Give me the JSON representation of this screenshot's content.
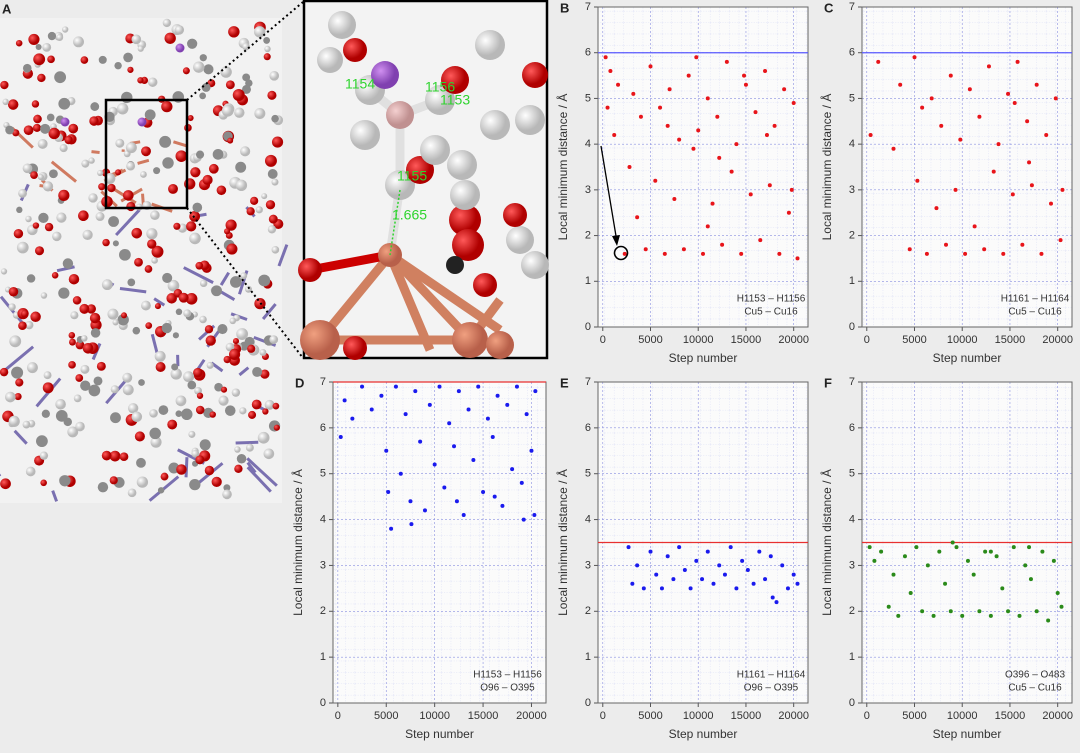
{
  "panel_a": {
    "label": "A"
  },
  "inset": {
    "labels": [
      "1154",
      "1156",
      "1153",
      "1155",
      "1.665"
    ]
  },
  "chart_data": [
    {
      "type": "scatter",
      "panel_label": "B",
      "xlabel": "Step number",
      "ylabel": "Local minimum distance / Å",
      "annotations": [
        "H1153 – H1156",
        "Cu5 – Cu16"
      ],
      "color": "#e8141a",
      "reference_line": {
        "value": 6,
        "color": "#5a5aff"
      },
      "xlim": [
        -500,
        21500
      ],
      "ylim": [
        0,
        7
      ],
      "xticks": [
        0,
        5000,
        10000,
        15000,
        20000
      ],
      "yticks": [
        0,
        1,
        2,
        3,
        4,
        5,
        6,
        7
      ],
      "grid": true,
      "x": [
        300,
        500,
        800,
        1200,
        1600,
        2300,
        2800,
        3200,
        3600,
        4000,
        4500,
        5000,
        5500,
        6000,
        6500,
        7000,
        7500,
        8000,
        8500,
        9000,
        9500,
        10000,
        10500,
        11000,
        11500,
        12000,
        12500,
        13000,
        13500,
        14000,
        14500,
        15000,
        15500,
        16000,
        16500,
        17000,
        17500,
        18000,
        18500,
        19000,
        19500,
        20000,
        20400,
        9800,
        12200,
        14800,
        17200,
        19800,
        6800,
        11000
      ],
      "values": [
        5.9,
        4.8,
        5.6,
        4.2,
        5.3,
        1.6,
        3.5,
        5.1,
        2.4,
        4.6,
        1.7,
        5.7,
        3.2,
        4.8,
        1.6,
        5.2,
        2.8,
        4.1,
        1.7,
        5.5,
        3.9,
        4.3,
        1.6,
        5.0,
        2.7,
        4.6,
        1.8,
        5.8,
        3.4,
        4.0,
        1.6,
        5.3,
        2.9,
        4.7,
        1.9,
        5.6,
        3.1,
        4.4,
        1.6,
        5.2,
        2.5,
        4.9,
        1.5,
        5.9,
        3.7,
        5.5,
        4.2,
        3.0,
        4.4,
        2.2
      ]
    },
    {
      "type": "scatter",
      "panel_label": "C",
      "xlabel": "Step number",
      "ylabel": "Local minimum distance / Å",
      "annotations": [
        "H1161 – H1164",
        "Cu5 – Cu16"
      ],
      "color": "#e8141a",
      "reference_line": {
        "value": 6,
        "color": "#5a5aff"
      },
      "xlim": [
        -500,
        21500
      ],
      "ylim": [
        0,
        7
      ],
      "xticks": [
        0,
        5000,
        10000,
        15000,
        20000
      ],
      "yticks": [
        0,
        1,
        2,
        3,
        4,
        5,
        6,
        7
      ],
      "grid": true,
      "x": [
        400,
        1200,
        2800,
        3500,
        4500,
        5000,
        5300,
        5800,
        6300,
        6800,
        7300,
        7800,
        8300,
        8800,
        9300,
        9800,
        10300,
        10800,
        11300,
        11800,
        12300,
        12800,
        13300,
        13800,
        14300,
        14800,
        15300,
        15800,
        16300,
        16800,
        17300,
        17800,
        18300,
        18800,
        19300,
        19800,
        20300,
        20500,
        15500,
        17000
      ],
      "values": [
        4.2,
        5.8,
        3.9,
        5.3,
        1.7,
        5.9,
        3.2,
        4.8,
        1.6,
        5.0,
        2.6,
        4.4,
        1.8,
        5.5,
        3.0,
        4.1,
        1.6,
        5.2,
        2.2,
        4.6,
        1.7,
        5.7,
        3.4,
        4.0,
        1.6,
        5.1,
        2.9,
        5.8,
        1.8,
        4.5,
        3.1,
        5.3,
        1.6,
        4.2,
        2.7,
        5.0,
        1.9,
        3.0,
        4.9,
        3.6
      ]
    },
    {
      "type": "scatter",
      "panel_label": "D",
      "xlabel": "Step number",
      "ylabel": "Local minimum distance / Å",
      "annotations": [
        "H1153 – H1156",
        "O96 – O395"
      ],
      "color": "#1a1aee",
      "reference_line": {
        "value": 7,
        "color": "#e83030"
      },
      "xlim": [
        -500,
        21500
      ],
      "ylim": [
        0,
        7
      ],
      "xticks": [
        0,
        5000,
        10000,
        15000,
        20000
      ],
      "yticks": [
        0,
        1,
        2,
        3,
        4,
        5,
        6,
        7
      ],
      "grid": true,
      "x": [
        300,
        700,
        1500,
        2500,
        3500,
        4500,
        5000,
        5500,
        6000,
        6500,
        7000,
        7500,
        8000,
        8500,
        9000,
        9500,
        10000,
        10500,
        11000,
        11500,
        12000,
        12500,
        13000,
        13500,
        14000,
        14500,
        15000,
        15500,
        16000,
        16500,
        17000,
        17500,
        18000,
        18500,
        19000,
        19500,
        20000,
        20400,
        5200,
        7600,
        12300,
        16200,
        19200,
        20300
      ],
      "values": [
        5.8,
        6.6,
        6.2,
        6.9,
        6.4,
        6.7,
        5.5,
        3.8,
        6.9,
        5.0,
        6.3,
        4.4,
        6.8,
        5.7,
        4.2,
        6.5,
        5.2,
        6.9,
        4.7,
        6.1,
        5.6,
        6.8,
        4.1,
        6.4,
        5.3,
        6.9,
        4.6,
        6.2,
        5.8,
        6.7,
        4.3,
        6.5,
        5.1,
        6.9,
        4.8,
        6.3,
        5.5,
        6.8,
        4.6,
        3.9,
        4.4,
        4.5,
        4.0,
        4.1
      ]
    },
    {
      "type": "scatter",
      "panel_label": "E",
      "xlabel": "Step number",
      "ylabel": "Local minimum distance / Å",
      "annotations": [
        "H1161 – H1164",
        "O96 – O395"
      ],
      "color": "#1a1aee",
      "reference_line": {
        "value": 3.5,
        "color": "#e83030"
      },
      "xlim": [
        -500,
        21500
      ],
      "ylim": [
        0,
        7
      ],
      "xticks": [
        0,
        5000,
        10000,
        15000,
        20000
      ],
      "yticks": [
        0,
        1,
        2,
        3,
        4,
        5,
        6,
        7
      ],
      "grid": true,
      "x": [
        2700,
        3100,
        3600,
        4300,
        5000,
        5600,
        6200,
        6800,
        7400,
        8000,
        8600,
        9200,
        9800,
        10400,
        11000,
        11600,
        12200,
        12800,
        13400,
        14000,
        14600,
        15200,
        15800,
        16400,
        17000,
        17600,
        18200,
        18800,
        19400,
        20000,
        20400,
        17800
      ],
      "values": [
        3.4,
        2.6,
        3.0,
        2.5,
        3.3,
        2.8,
        2.5,
        3.2,
        2.7,
        3.4,
        2.9,
        2.5,
        3.1,
        2.7,
        3.3,
        2.6,
        3.0,
        2.8,
        3.4,
        2.5,
        3.1,
        2.9,
        2.6,
        3.3,
        2.7,
        3.2,
        2.2,
        3.0,
        2.5,
        2.8,
        2.6,
        2.3
      ]
    },
    {
      "type": "scatter",
      "panel_label": "F",
      "xlabel": "Step number",
      "ylabel": "Local minimum distance / Å",
      "annotations": [
        "O396 – O483",
        "Cu5 – Cu16"
      ],
      "color": "#2a8a1a",
      "reference_line": {
        "value": 3.5,
        "color": "#e83030"
      },
      "xlim": [
        -500,
        21500
      ],
      "ylim": [
        0,
        7
      ],
      "xticks": [
        0,
        5000,
        10000,
        15000,
        20000
      ],
      "yticks": [
        0,
        1,
        2,
        3,
        4,
        5,
        6,
        7
      ],
      "grid": true,
      "x": [
        300,
        800,
        1500,
        2300,
        2800,
        3300,
        4000,
        4600,
        5200,
        5800,
        6400,
        7000,
        7600,
        8200,
        8800,
        9400,
        10000,
        10600,
        11200,
        11800,
        12400,
        13000,
        13600,
        14200,
        14800,
        15400,
        16000,
        16600,
        17200,
        17800,
        18400,
        19000,
        19600,
        20000,
        20400,
        9000,
        13000,
        17000
      ],
      "values": [
        3.4,
        3.1,
        3.3,
        2.1,
        2.8,
        1.9,
        3.2,
        2.4,
        3.4,
        2.0,
        3.0,
        1.9,
        3.3,
        2.6,
        2.0,
        3.4,
        1.9,
        3.1,
        2.8,
        2.0,
        3.3,
        1.9,
        3.2,
        2.5,
        2.0,
        3.4,
        1.9,
        3.0,
        2.7,
        2.0,
        3.3,
        1.8,
        3.1,
        2.4,
        2.1,
        3.5,
        3.3,
        3.4
      ]
    }
  ]
}
